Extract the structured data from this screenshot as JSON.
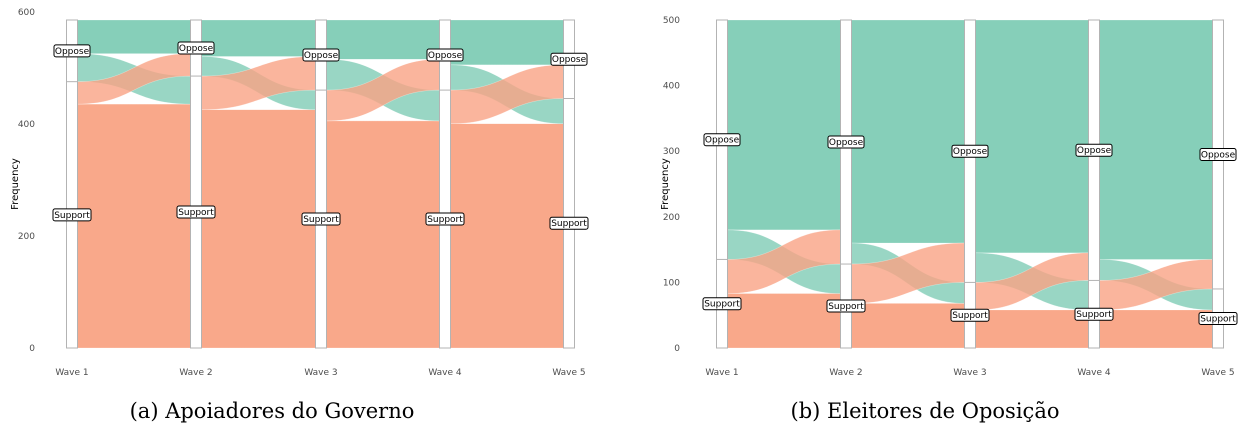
{
  "colors": {
    "oppose": "#7FCCB5",
    "support": "#F9A384",
    "axis_fill": "#ffffff",
    "axis_stroke": "#b3b3b3"
  },
  "chart_data": [
    {
      "type": "alluvial",
      "caption": "(a) Apoiadores do Governo",
      "ylabel": "Frequency",
      "ylim": [
        0,
        600
      ],
      "yticks": [
        0,
        200,
        400,
        600
      ],
      "categories": [
        "Wave 1",
        "Wave 2",
        "Wave 3",
        "Wave 4",
        "Wave 5"
      ],
      "strata": [
        "Oppose",
        "Support"
      ],
      "total": 585,
      "series": [
        {
          "name": "Oppose",
          "values": [
            110,
            100,
            125,
            125,
            140
          ]
        },
        {
          "name": "Support",
          "values": [
            475,
            485,
            460,
            460,
            445
          ]
        }
      ],
      "flows": [
        {
          "from": "Oppose",
          "to": "Oppose",
          "values": [
            60,
            65,
            70,
            80
          ]
        },
        {
          "from": "Oppose",
          "to": "Support",
          "values": [
            50,
            35,
            55,
            45
          ]
        },
        {
          "from": "Support",
          "to": "Oppose",
          "values": [
            40,
            60,
            55,
            60
          ]
        },
        {
          "from": "Support",
          "to": "Support",
          "values": [
            435,
            425,
            405,
            400
          ]
        }
      ]
    },
    {
      "type": "alluvial",
      "caption": "(b) Eleitores de Oposição",
      "ylabel": "Frequency",
      "ylim": [
        0,
        500
      ],
      "yticks": [
        0,
        100,
        200,
        300,
        400,
        500
      ],
      "categories": [
        "Wave 1",
        "Wave 2",
        "Wave 3",
        "Wave 4",
        "Wave 5"
      ],
      "strata": [
        "Oppose",
        "Support"
      ],
      "total": 500,
      "series": [
        {
          "name": "Oppose",
          "values": [
            365,
            372,
            400,
            397,
            410
          ]
        },
        {
          "name": "Support",
          "values": [
            135,
            128,
            100,
            103,
            90
          ]
        }
      ],
      "flows": [
        {
          "from": "Oppose",
          "to": "Oppose",
          "values": [
            320,
            340,
            355,
            365
          ]
        },
        {
          "from": "Oppose",
          "to": "Support",
          "values": [
            45,
            32,
            45,
            32
          ]
        },
        {
          "from": "Support",
          "to": "Oppose",
          "values": [
            52,
            60,
            42,
            45
          ]
        },
        {
          "from": "Support",
          "to": "Support",
          "values": [
            83,
            68,
            58,
            58
          ]
        }
      ]
    }
  ]
}
